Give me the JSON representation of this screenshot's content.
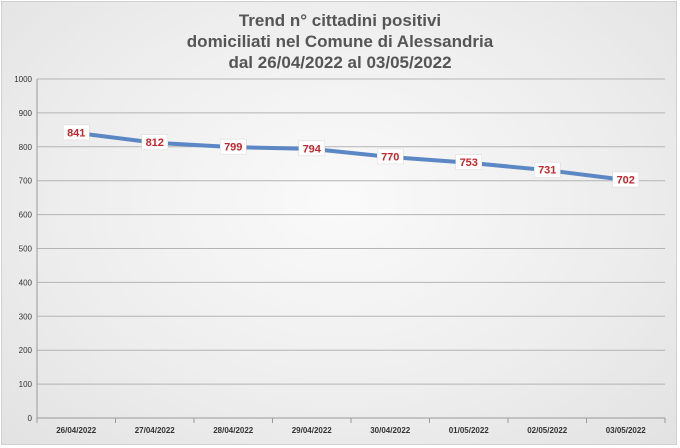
{
  "chart_data": {
    "type": "line",
    "title": [
      "Trend n° cittadini positivi",
      "domiciliati nel Comune di Alessandria",
      "dal 26/04/2022 al 03/05/2022"
    ],
    "categories": [
      "26/04/2022",
      "27/04/2022",
      "28/04/2022",
      "29/04/2022",
      "30/04/2022",
      "01/05/2022",
      "02/05/2022",
      "03/05/2022"
    ],
    "values": [
      841,
      812,
      799,
      794,
      770,
      753,
      731,
      702
    ],
    "ylim": [
      0,
      1000
    ],
    "yticks": [
      0,
      100,
      200,
      300,
      400,
      500,
      600,
      700,
      800,
      900,
      1000
    ],
    "grid": true,
    "line_color": "#5b87c4",
    "label_color": "#c0262c"
  }
}
